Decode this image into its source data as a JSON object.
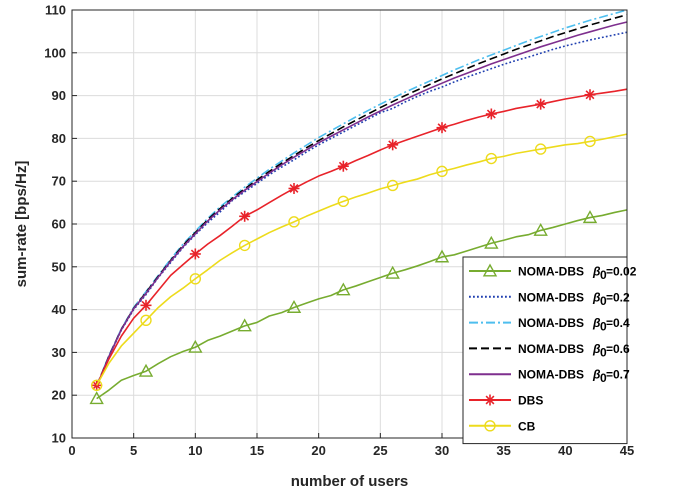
{
  "chart_data": {
    "type": "line",
    "title": "",
    "xlabel": "number of users",
    "ylabel": "sum-rate [bps/Hz]",
    "xlim": [
      0,
      45
    ],
    "ylim": [
      10,
      110
    ],
    "xticks": [
      0,
      5,
      10,
      15,
      20,
      25,
      30,
      35,
      40,
      45
    ],
    "yticks": [
      10,
      20,
      30,
      40,
      50,
      60,
      70,
      80,
      90,
      100,
      110
    ],
    "grid": true,
    "legend_position": "bottom-right",
    "x": [
      2,
      3,
      4,
      5,
      6,
      7,
      8,
      9,
      10,
      11,
      12,
      13,
      14,
      15,
      16,
      17,
      18,
      19,
      20,
      21,
      22,
      23,
      24,
      25,
      26,
      27,
      28,
      29,
      30,
      31,
      32,
      33,
      34,
      35,
      36,
      37,
      38,
      39,
      40,
      41,
      42,
      43,
      44,
      45
    ],
    "series": [
      {
        "name": "NOMA-DBS",
        "beta": "=0.02",
        "color": "#77AC30",
        "dash": "",
        "marker": "triangle",
        "markers_at": [
          2,
          6,
          10,
          14,
          18,
          22,
          26,
          30,
          34,
          38,
          42
        ],
        "values": [
          19.2,
          21.2,
          23.5,
          24.6,
          25.6,
          27.4,
          29.0,
          30.2,
          31.2,
          32.8,
          33.8,
          35.0,
          36.2,
          37.0,
          38.5,
          39.3,
          40.5,
          41.5,
          42.5,
          43.3,
          44.6,
          45.5,
          46.5,
          47.5,
          48.5,
          49.3,
          50.2,
          51.2,
          52.3,
          52.8,
          53.7,
          54.6,
          55.5,
          56.2,
          57.0,
          57.5,
          58.5,
          59.2,
          60.0,
          60.8,
          61.5,
          62.0,
          62.7,
          63.3
        ]
      },
      {
        "name": "NOMA-DBS",
        "beta": "=0.2",
        "color": "#1F3FB0",
        "dash": "1.8 2.2",
        "marker": "none",
        "values": [
          22.0,
          29.0,
          35.2,
          40.0,
          43.5,
          47.5,
          51.0,
          54.5,
          57.5,
          60.3,
          62.8,
          65.5,
          67.5,
          69.5,
          71.5,
          73.3,
          75.0,
          76.8,
          78.5,
          80.0,
          81.5,
          83.0,
          84.5,
          86.0,
          87.0,
          88.5,
          89.8,
          91.0,
          92.0,
          93.2,
          94.3,
          95.3,
          96.3,
          97.3,
          98.2,
          99.0,
          99.9,
          100.8,
          101.6,
          102.3,
          103.0,
          103.6,
          104.2,
          104.8
        ]
      },
      {
        "name": "NOMA-DBS",
        "beta": "=0.4",
        "color": "#4DBEEE",
        "dash": "9 3 2 3",
        "marker": "none",
        "values": [
          22.2,
          29.3,
          35.5,
          40.5,
          44.2,
          48.0,
          51.8,
          55.3,
          58.3,
          61.3,
          64.0,
          66.3,
          68.6,
          70.7,
          72.8,
          74.7,
          76.6,
          78.4,
          80.2,
          81.8,
          83.4,
          85.0,
          86.5,
          88.0,
          89.4,
          90.8,
          92.1,
          93.4,
          94.7,
          96.0,
          97.2,
          98.4,
          99.5,
          100.6,
          101.7,
          102.8,
          103.8,
          104.8,
          105.8,
          106.7,
          107.6,
          108.4,
          109.2,
          110.0
        ]
      },
      {
        "name": "NOMA-DBS",
        "beta": "=0.6",
        "color": "#000000",
        "dash": "8 4",
        "marker": "none",
        "values": [
          22.1,
          29.2,
          35.4,
          40.3,
          44.0,
          47.8,
          51.5,
          55.0,
          58.0,
          61.0,
          63.6,
          66.0,
          68.2,
          70.3,
          72.3,
          74.2,
          76.0,
          77.8,
          79.5,
          81.1,
          82.7,
          84.2,
          85.7,
          87.2,
          88.6,
          90.0,
          91.3,
          92.6,
          93.9,
          95.1,
          96.3,
          97.5,
          98.6,
          99.7,
          100.8,
          101.8,
          102.8,
          103.8,
          104.7,
          105.6,
          106.5,
          107.3,
          108.1,
          108.9
        ]
      },
      {
        "name": "NOMA-DBS",
        "beta": "=0.7",
        "color": "#7E2F8E",
        "dash": "",
        "marker": "none",
        "values": [
          22.0,
          29.1,
          35.3,
          40.2,
          43.8,
          47.6,
          51.3,
          54.7,
          57.7,
          60.7,
          63.3,
          65.7,
          67.9,
          69.9,
          71.9,
          73.8,
          75.6,
          77.3,
          79.0,
          80.5,
          82.0,
          83.5,
          85.0,
          86.4,
          87.8,
          89.1,
          90.4,
          91.7,
          92.9,
          94.1,
          95.2,
          96.3,
          97.4,
          98.4,
          99.4,
          100.4,
          101.4,
          102.3,
          103.2,
          104.1,
          104.9,
          105.7,
          106.5,
          107.2
        ]
      },
      {
        "name": "DBS",
        "beta": "",
        "color": "#E8232A",
        "dash": "",
        "marker": "asterisk",
        "markers_at": [
          2,
          6,
          10,
          14,
          18,
          22,
          26,
          30,
          34,
          38,
          42
        ],
        "values": [
          22.3,
          28.5,
          33.8,
          38.0,
          41.0,
          44.5,
          48.0,
          50.5,
          53.0,
          55.3,
          57.3,
          59.5,
          61.8,
          63.3,
          65.0,
          66.7,
          68.3,
          69.8,
          71.2,
          72.3,
          73.5,
          74.8,
          76.0,
          77.3,
          78.5,
          79.5,
          80.5,
          81.5,
          82.5,
          83.3,
          84.2,
          85.0,
          85.7,
          86.3,
          87.0,
          87.5,
          88.0,
          88.6,
          89.2,
          89.7,
          90.2,
          90.6,
          91.0,
          91.5
        ]
      },
      {
        "name": "CB",
        "beta": "",
        "color": "#EDDB1C",
        "dash": "",
        "marker": "circle",
        "markers_at": [
          2,
          6,
          10,
          14,
          18,
          22,
          26,
          30,
          34,
          38,
          42
        ],
        "values": [
          22.3,
          27.5,
          31.5,
          34.5,
          37.5,
          40.5,
          43.0,
          45.0,
          47.2,
          49.3,
          51.5,
          53.3,
          55.0,
          56.5,
          58.0,
          59.3,
          60.5,
          61.8,
          63.0,
          64.2,
          65.3,
          66.3,
          67.2,
          68.2,
          69.0,
          69.8,
          70.5,
          71.5,
          72.3,
          73.0,
          73.8,
          74.5,
          75.3,
          75.8,
          76.5,
          77.0,
          77.5,
          78.0,
          78.5,
          78.8,
          79.3,
          79.8,
          80.4,
          81.0
        ]
      }
    ],
    "legend_beta_symbol": "β",
    "legend_beta_subscript": "0"
  }
}
